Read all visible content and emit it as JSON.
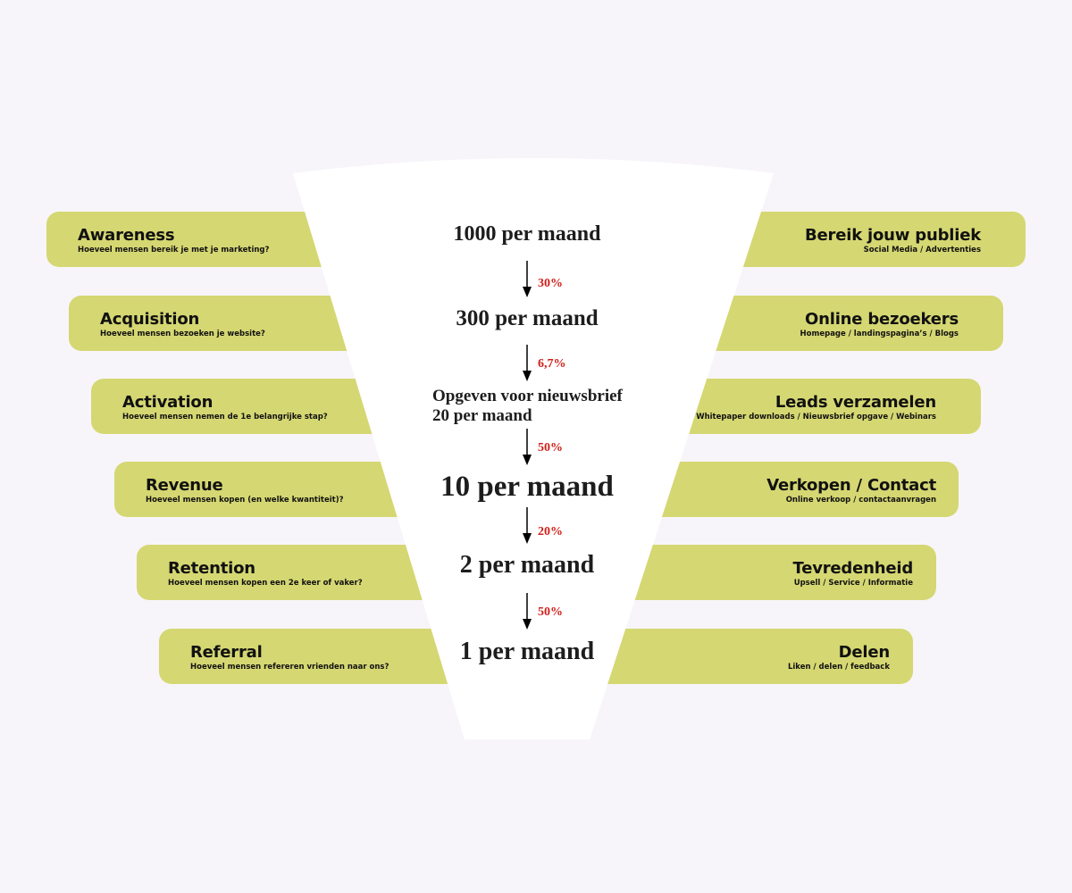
{
  "colors": {
    "bar": "#d5d772",
    "funnel": "#ffffff",
    "background": "#f7f5fa",
    "percent": "#d0201a",
    "text": "#1d1d1d"
  },
  "stages": [
    {
      "name": "Awareness",
      "question": "Hoeveel mensen bereik je met je marketing?",
      "goal": "Bereik jouw publiek",
      "channels": "Social Media / Advertenties",
      "volume": "1000 per maand"
    },
    {
      "name": "Acquisition",
      "question": "Hoeveel mensen bezoeken je website?",
      "goal": "Online bezoekers",
      "channels": "Homepage / landingspagina’s / Blogs",
      "volume": "300 per maand"
    },
    {
      "name": "Activation",
      "question": "Hoeveel mensen nemen de 1e belangrijke stap?",
      "goal": "Leads verzamelen",
      "channels": "Whitepaper downloads / Nieuwsbrief opgave / Webinars",
      "volume_line1": "Opgeven voor nieuwsbrief",
      "volume": "20 per maand"
    },
    {
      "name": "Revenue",
      "question": "Hoeveel mensen kopen (en welke kwantiteit)?",
      "goal": "Verkopen / Contact",
      "channels": "Online verkoop / contactaanvragen",
      "volume": "10 per maand"
    },
    {
      "name": "Retention",
      "question": "Hoeveel mensen kopen een 2e keer of vaker?",
      "goal": "Tevredenheid",
      "channels": "Upsell / Service / Informatie",
      "volume": "2 per maand"
    },
    {
      "name": "Referral",
      "question": "Hoeveel mensen refereren vrienden naar ons?",
      "goal": "Delen",
      "channels": "Liken / delen / feedback",
      "volume": "1 per maand"
    }
  ],
  "conversions": [
    "30%",
    "6,7%",
    "50%",
    "20%",
    "50%"
  ]
}
